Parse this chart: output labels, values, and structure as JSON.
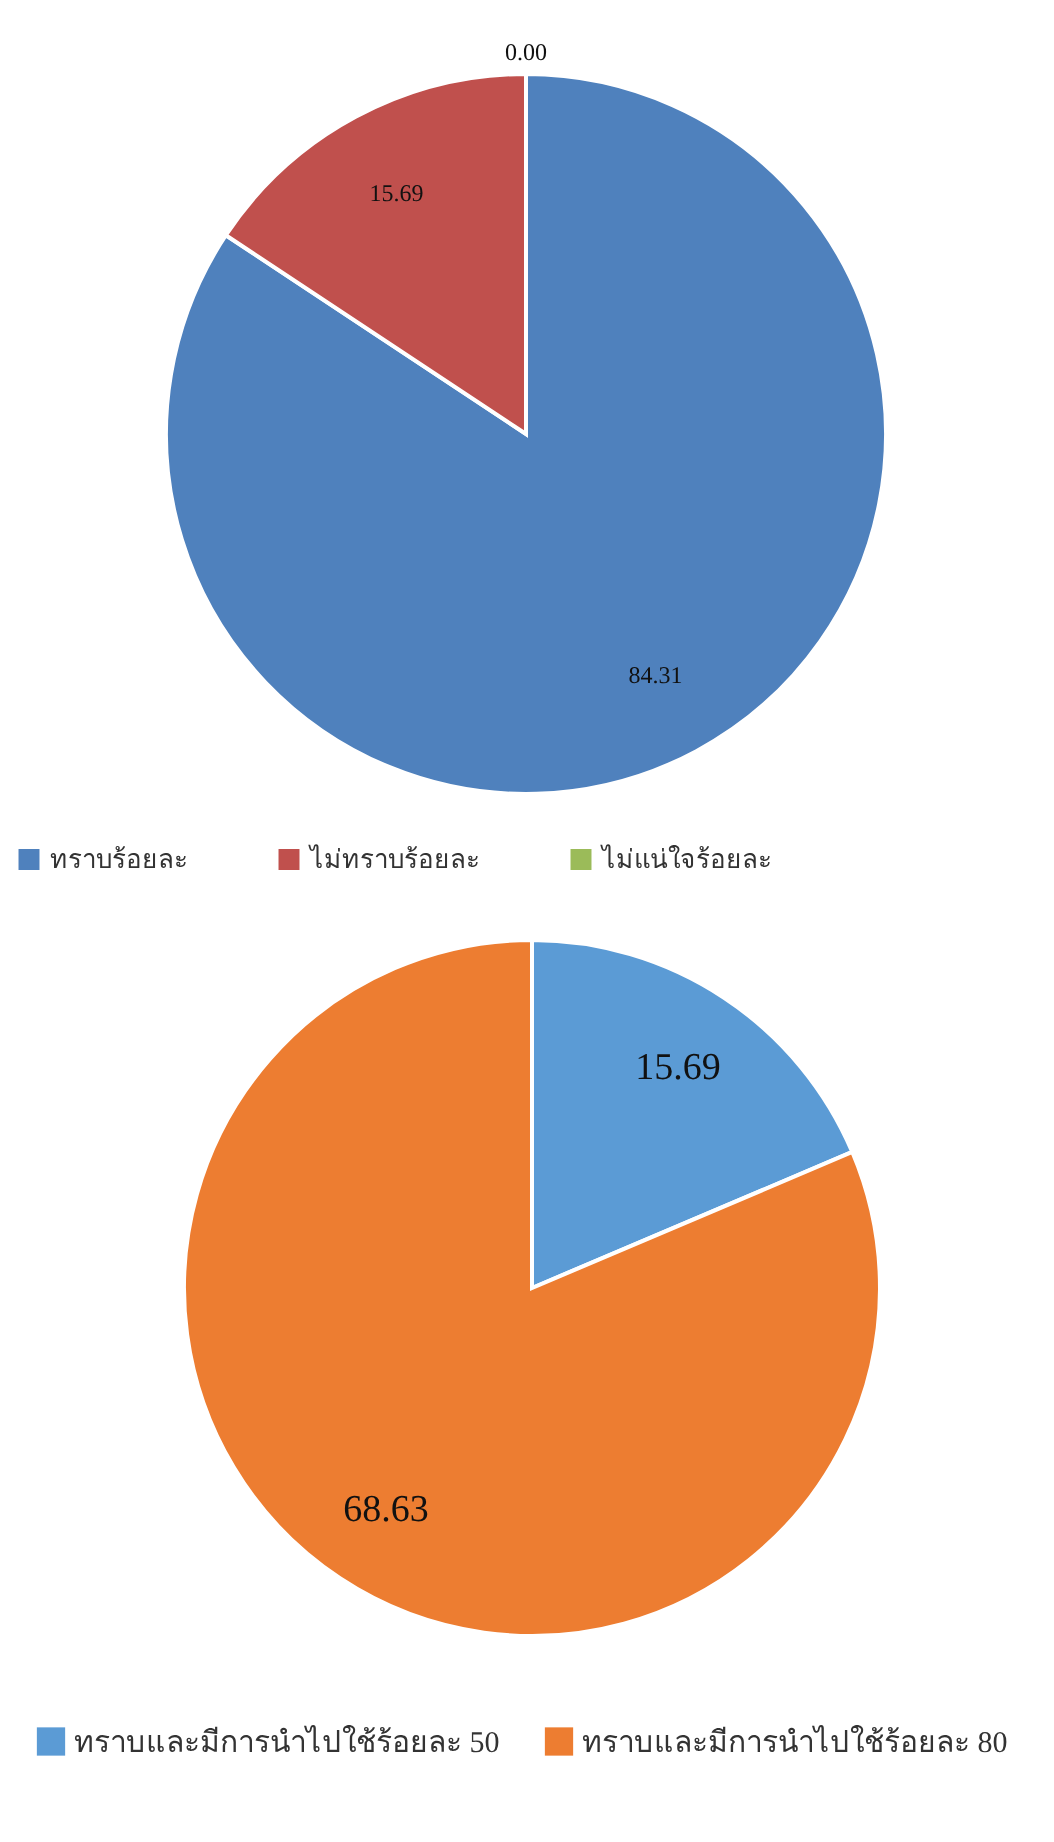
{
  "chart_data": [
    {
      "type": "pie",
      "categories": [
        "ทราบร้อยละ",
        "ไม่ทราบร้อยละ",
        "ไม่แน่ใจร้อยละ"
      ],
      "values": [
        84.31,
        15.69,
        0.0
      ],
      "value_labels": [
        "84.31",
        "15.69",
        "0.00"
      ],
      "colors": [
        "#4f81bd",
        "#c0504d",
        "#9bbb59"
      ],
      "legend": "bottom"
    },
    {
      "type": "pie",
      "categories": [
        "ทราบและมีการนำไปใช้ร้อยละ 50",
        "ทราบและมีการนำไปใช้ร้อยละ 80"
      ],
      "values": [
        15.69,
        68.63
      ],
      "value_labels": [
        "15.69",
        "68.63"
      ],
      "colors": [
        "#5b9bd5",
        "#ed7d31"
      ],
      "legend": "bottom"
    }
  ]
}
